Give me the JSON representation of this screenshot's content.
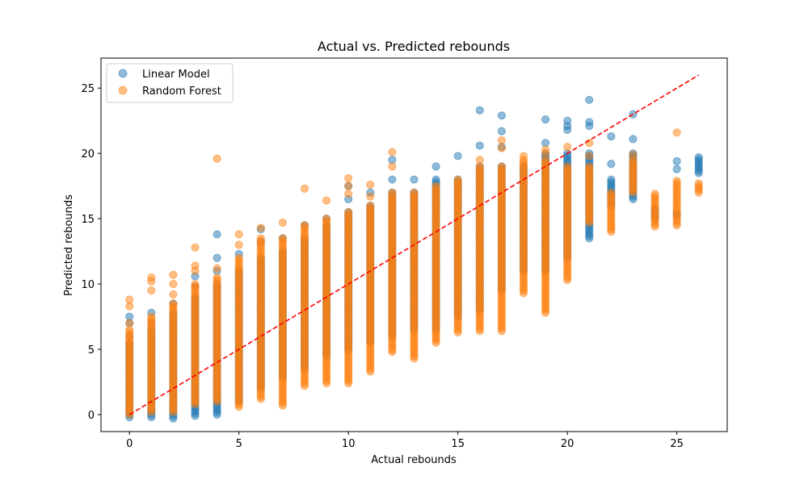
{
  "chart_data": {
    "type": "scatter",
    "title": "Actual vs. Predicted rebounds",
    "xlabel": "Actual rebounds",
    "ylabel": "Predicted rebounds",
    "xlim": [
      -1.3,
      27.3
    ],
    "ylim": [
      -1.3,
      27.3
    ],
    "xticks": [
      0,
      5,
      10,
      15,
      20,
      25
    ],
    "yticks": [
      0,
      5,
      10,
      15,
      20,
      25
    ],
    "grid": false,
    "legend_position": "upper-left",
    "reference_line": {
      "x": [
        0,
        26
      ],
      "y": [
        0,
        26
      ],
      "color": "#ff0000",
      "style": "dashed"
    },
    "series": [
      {
        "name": "Linear Model",
        "color": "#1f77b4",
        "points": [
          {
            "x": 0,
            "lo": -0.2,
            "hi": 5.5,
            "extra": [
              6.0,
              7.0,
              7.5
            ]
          },
          {
            "x": 1,
            "lo": -0.2,
            "hi": 6.5,
            "extra": [
              7.0,
              7.8
            ]
          },
          {
            "x": 2,
            "lo": -0.3,
            "hi": 7.8,
            "extra": [
              8.5
            ]
          },
          {
            "x": 3,
            "lo": -0.1,
            "hi": 9.0,
            "extra": [
              9.8,
              10.6
            ]
          },
          {
            "x": 4,
            "lo": 0.0,
            "hi": 10.0,
            "extra": [
              11.0,
              12.0,
              13.8
            ]
          },
          {
            "x": 5,
            "lo": 1.0,
            "hi": 11.0,
            "extra": [
              12.3
            ]
          },
          {
            "x": 6,
            "lo": 2.0,
            "hi": 12.0,
            "extra": [
              13.2,
              14.2
            ]
          },
          {
            "x": 7,
            "lo": 2.8,
            "hi": 12.5,
            "extra": [
              13.5
            ]
          },
          {
            "x": 8,
            "lo": 3.5,
            "hi": 13.5,
            "extra": [
              14.5
            ]
          },
          {
            "x": 9,
            "lo": 4.5,
            "hi": 14.5,
            "extra": [
              15.0
            ]
          },
          {
            "x": 10,
            "lo": 5.0,
            "hi": 15.5,
            "extra": [
              16.5,
              17.5
            ]
          },
          {
            "x": 11,
            "lo": 5.5,
            "hi": 16.0,
            "extra": [
              17.0
            ]
          },
          {
            "x": 12,
            "lo": 6.0,
            "hi": 17.0,
            "extra": [
              18.0,
              19.5
            ]
          },
          {
            "x": 13,
            "lo": 6.5,
            "hi": 17.0,
            "extra": [
              18.0
            ]
          },
          {
            "x": 14,
            "lo": 6.8,
            "hi": 18.0,
            "extra": [
              19.0,
              6.5
            ]
          },
          {
            "x": 15,
            "lo": 7.5,
            "hi": 18.0,
            "extra": [
              19.8
            ]
          },
          {
            "x": 16,
            "lo": 8.0,
            "hi": 19.0,
            "extra": [
              20.6,
              23.3
            ]
          },
          {
            "x": 17,
            "lo": 9.5,
            "hi": 19.0,
            "extra": [
              20.5,
              21.7,
              22.9
            ]
          },
          {
            "x": 18,
            "lo": 11.0,
            "hi": 19.0,
            "extra": []
          },
          {
            "x": 19,
            "lo": 11.0,
            "hi": 20.0,
            "extra": [
              20.8,
              22.6
            ]
          },
          {
            "x": 20,
            "lo": 12.0,
            "hi": 20.0,
            "extra": [
              21.8,
              22.1,
              22.5
            ]
          },
          {
            "x": 21,
            "lo": 13.5,
            "hi": 20.0,
            "extra": [
              22.1,
              22.4,
              24.1
            ]
          },
          {
            "x": 22,
            "lo": 16.0,
            "hi": 18.0,
            "extra": [
              19.2,
              21.3
            ]
          },
          {
            "x": 23,
            "lo": 16.5,
            "hi": 20.0,
            "extra": [
              21.1,
              23.0
            ]
          },
          {
            "x": 24,
            "lo": 15.0,
            "hi": 15.8,
            "extra": []
          },
          {
            "x": 25,
            "lo": 15.2,
            "hi": 15.4,
            "extra": [
              18.8,
              19.4
            ]
          },
          {
            "x": 26,
            "lo": 18.5,
            "hi": 19.7,
            "extra": []
          }
        ]
      },
      {
        "name": "Random Forest",
        "color": "#ff7f0e",
        "points": [
          {
            "x": 0,
            "lo": 0.0,
            "hi": 6.5,
            "extra": [
              7.0,
              8.3,
              8.8
            ]
          },
          {
            "x": 1,
            "lo": 0.2,
            "hi": 7.5,
            "extra": [
              9.5,
              10.2,
              10.5
            ]
          },
          {
            "x": 2,
            "lo": 0.2,
            "hi": 8.5,
            "extra": [
              9.2,
              10.0,
              10.7
            ]
          },
          {
            "x": 3,
            "lo": 0.8,
            "hi": 10.0,
            "extra": [
              11.0,
              11.4,
              12.8
            ]
          },
          {
            "x": 4,
            "lo": 1.0,
            "hi": 10.5,
            "extra": [
              11.2,
              19.6
            ]
          },
          {
            "x": 5,
            "lo": 0.6,
            "hi": 12.0,
            "extra": [
              13.0,
              13.8
            ]
          },
          {
            "x": 6,
            "lo": 1.2,
            "hi": 13.5,
            "extra": [
              14.3
            ]
          },
          {
            "x": 7,
            "lo": 0.7,
            "hi": 13.5,
            "extra": [
              14.7
            ]
          },
          {
            "x": 8,
            "lo": 2.2,
            "hi": 14.5,
            "extra": [
              17.3
            ]
          },
          {
            "x": 9,
            "lo": 2.4,
            "hi": 15.0,
            "extra": [
              16.4
            ]
          },
          {
            "x": 10,
            "lo": 2.4,
            "hi": 15.5,
            "extra": [
              16.9,
              17.5,
              18.1
            ]
          },
          {
            "x": 11,
            "lo": 3.3,
            "hi": 16.0,
            "extra": [
              16.7,
              17.6
            ]
          },
          {
            "x": 12,
            "lo": 4.8,
            "hi": 17.0,
            "extra": [
              19.0,
              20.1
            ]
          },
          {
            "x": 13,
            "lo": 4.3,
            "hi": 17.0,
            "extra": []
          },
          {
            "x": 14,
            "lo": 5.5,
            "hi": 17.5,
            "extra": []
          },
          {
            "x": 15,
            "lo": 6.3,
            "hi": 18.0,
            "extra": []
          },
          {
            "x": 16,
            "lo": 6.4,
            "hi": 19.0,
            "extra": [
              19.5
            ]
          },
          {
            "x": 17,
            "lo": 6.4,
            "hi": 19.0,
            "extra": [
              20.4,
              21.0
            ]
          },
          {
            "x": 18,
            "lo": 9.3,
            "hi": 19.5,
            "extra": [
              19.8
            ]
          },
          {
            "x": 19,
            "lo": 7.8,
            "hi": 19.5,
            "extra": [
              20.0,
              20.3
            ]
          },
          {
            "x": 20,
            "lo": 10.3,
            "hi": 19.0,
            "extra": [
              20.5
            ]
          },
          {
            "x": 21,
            "lo": 14.7,
            "hi": 19.0,
            "extra": [
              19.8,
              20.8
            ]
          },
          {
            "x": 22,
            "lo": 14.0,
            "hi": 17.0,
            "extra": []
          },
          {
            "x": 23,
            "lo": 17.0,
            "hi": 19.5,
            "extra": [
              19.9
            ]
          },
          {
            "x": 24,
            "lo": 14.4,
            "hi": 16.9,
            "extra": []
          },
          {
            "x": 25,
            "lo": 14.5,
            "hi": 17.9,
            "extra": [
              21.6
            ]
          },
          {
            "x": 26,
            "lo": 17.0,
            "hi": 17.7,
            "extra": []
          }
        ]
      }
    ]
  }
}
